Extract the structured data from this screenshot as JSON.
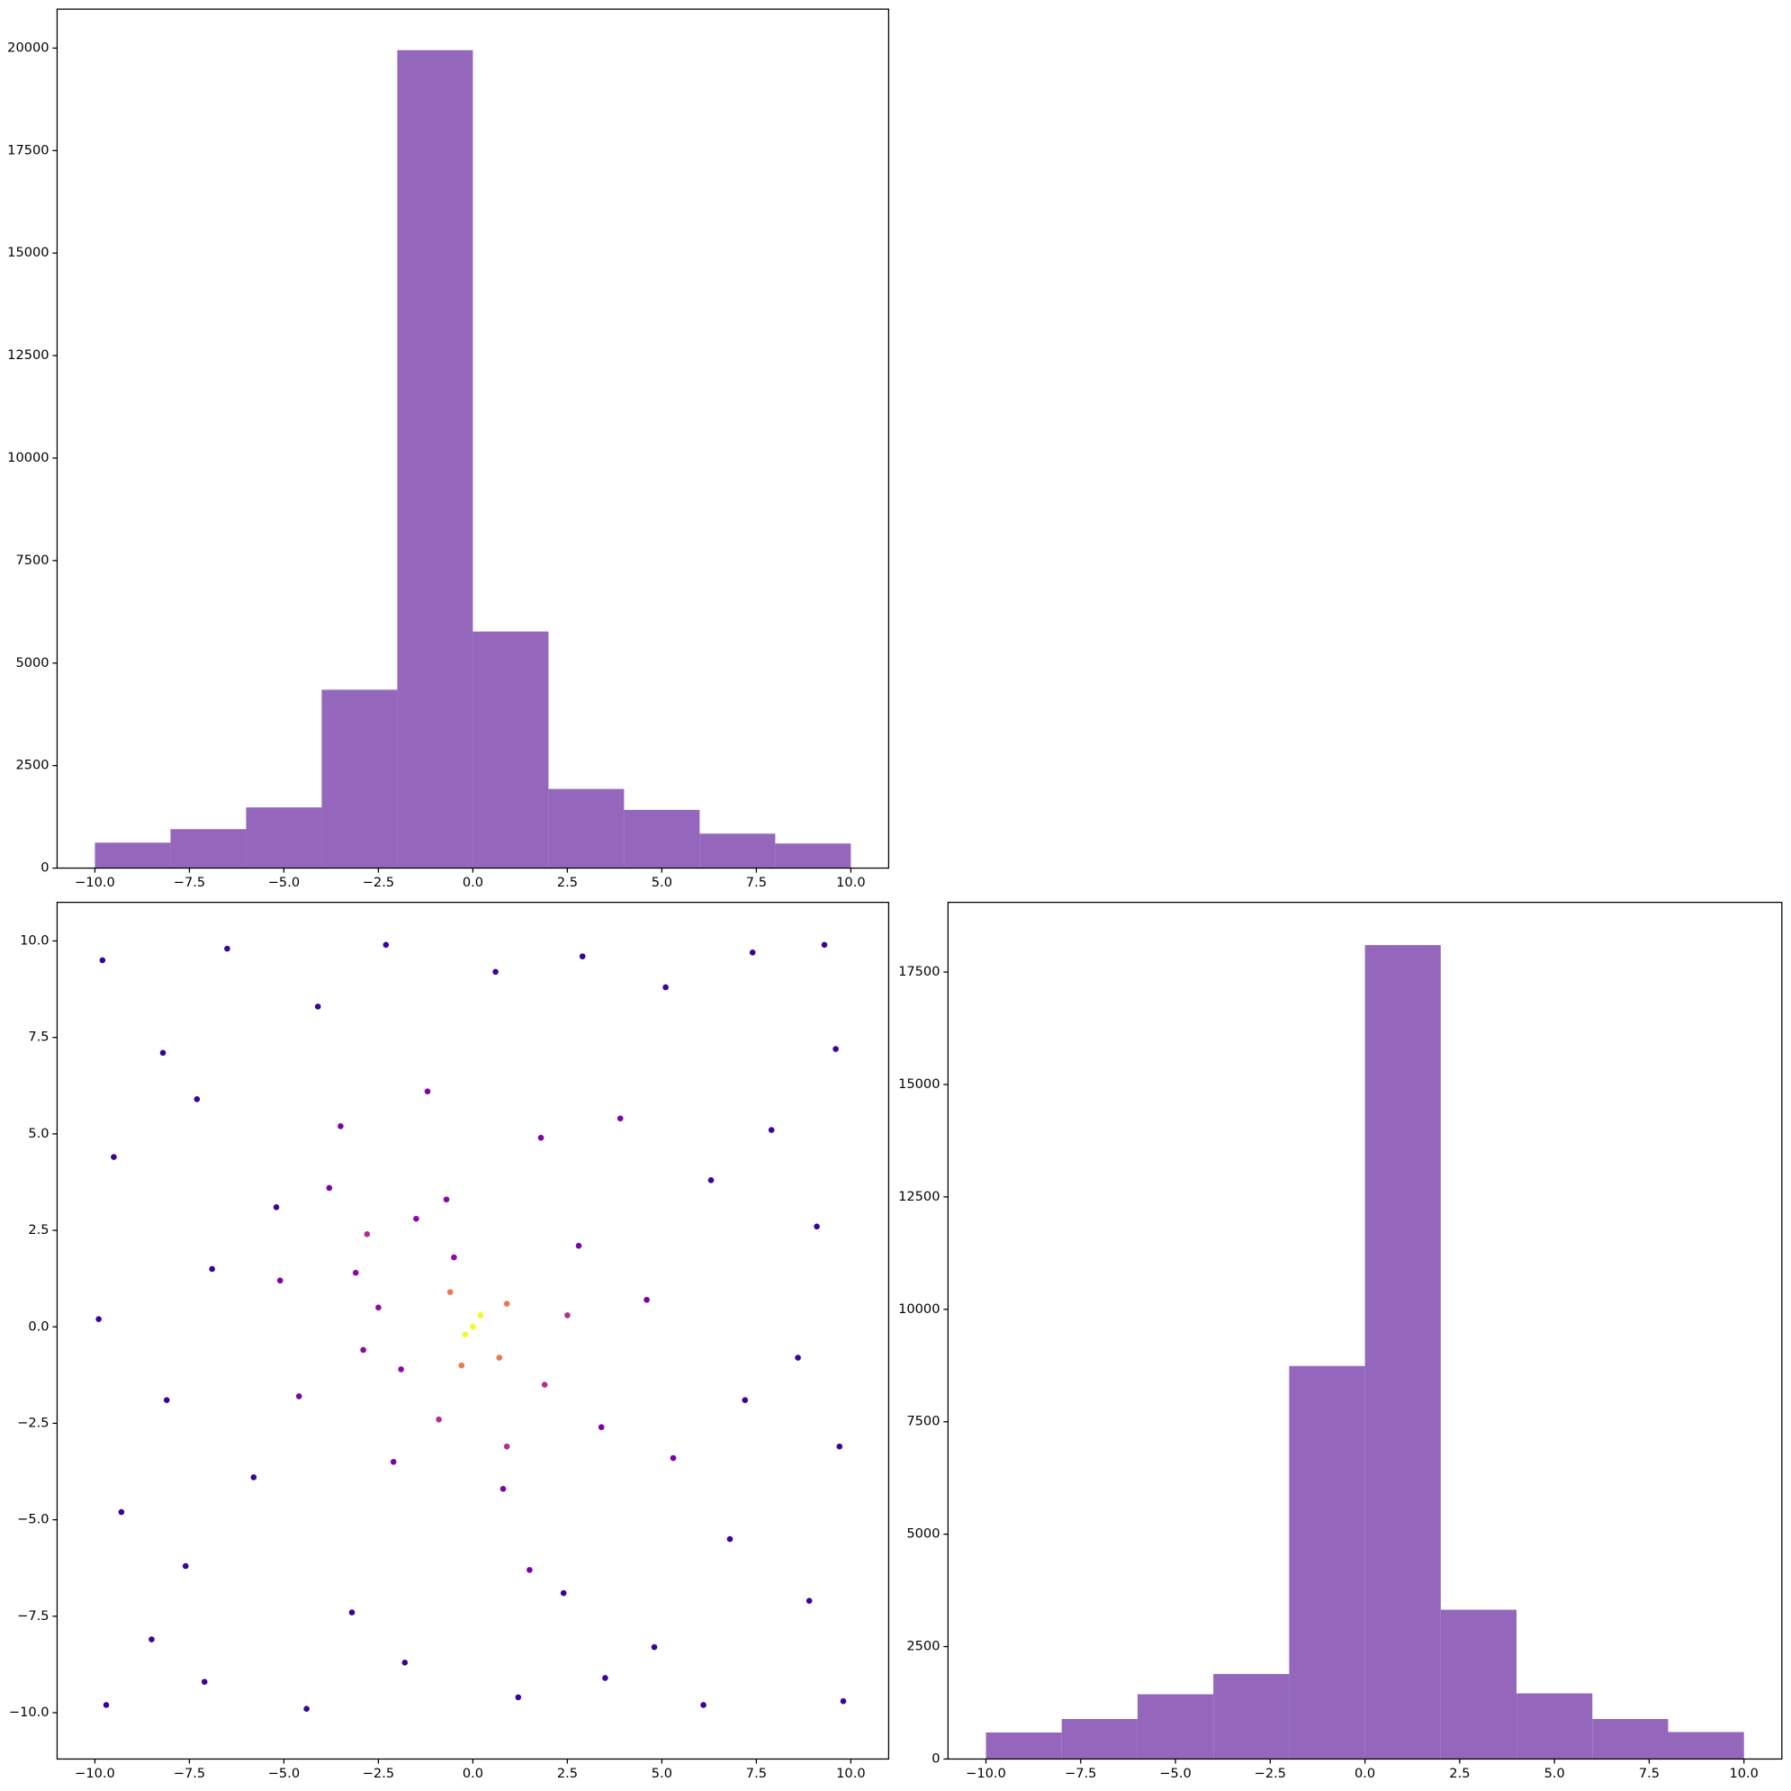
{
  "chart_data": [
    {
      "type": "histogram",
      "color": "#9467bd",
      "bins": [
        -10,
        -8,
        -6,
        -4,
        -2,
        0,
        2,
        4,
        6,
        8,
        10
      ],
      "values": [
        620,
        950,
        1480,
        4350,
        19950,
        5770,
        1930,
        1420,
        840,
        600
      ],
      "xlim": [
        -11,
        11
      ],
      "ylim": [
        0,
        20950
      ],
      "xticks": [
        {
          "value": -10,
          "label": "−10.0"
        },
        {
          "value": -7.5,
          "label": "−7.5"
        },
        {
          "value": -5,
          "label": "−5.0"
        },
        {
          "value": -2.5,
          "label": "−2.5"
        },
        {
          "value": 0,
          "label": "0.0"
        },
        2.5,
        {
          "value": 5,
          "label": "5.0"
        },
        7.5,
        {
          "value": 10,
          "label": "10.0"
        }
      ],
      "yticks": [
        0,
        2500,
        5000,
        7500,
        10000,
        12500,
        15000,
        17500,
        20000
      ]
    },
    {
      "type": "scatter",
      "x": [
        -9.8,
        -8.2,
        -6.5,
        -4.1,
        -2.3,
        0.6,
        2.9,
        5.1,
        7.4,
        9.6,
        -9.5,
        -7.3,
        -5.2,
        7.9,
        9.1,
        6.3,
        -9.9,
        -8.1,
        -6.9,
        8.6,
        9.7,
        7.2,
        -9.3,
        -7.6,
        -5.8,
        6.8,
        8.9,
        4.8,
        -9.7,
        -7.1,
        -4.4,
        -1.8,
        1.2,
        3.5,
        6.1,
        9.8,
        -3.2,
        2.4,
        -8.5,
        9.3,
        -3.5,
        -1.2,
        1.8,
        3.9,
        -4.6,
        2.8,
        3.4,
        -2.1,
        0.8,
        4.6,
        -5.1,
        1.5,
        5.3,
        -3.8,
        1.9,
        -0.9,
        2.5,
        0.9,
        -2.8,
        -2.5,
        -1.5,
        -0.7,
        -2.9,
        -1.9,
        -0.5,
        -3.1,
        0.7,
        -0.6,
        0.9,
        -0.3,
        0,
        0.2,
        -0.2
      ],
      "y": [
        9.5,
        7.1,
        9.8,
        8.3,
        9.9,
        9.2,
        9.6,
        8.8,
        9.7,
        7.2,
        4.4,
        5.9,
        3.1,
        5.1,
        2.6,
        3.8,
        0.2,
        -1.9,
        1.5,
        -0.8,
        -3.1,
        -1.9,
        -4.8,
        -6.2,
        -3.9,
        -5.5,
        -7.1,
        -8.3,
        -9.8,
        -9.2,
        -9.9,
        -8.7,
        -9.6,
        -9.1,
        -9.8,
        -9.7,
        -7.4,
        -6.9,
        -8.1,
        9.9,
        5.2,
        6.1,
        4.9,
        5.4,
        -1.8,
        2.1,
        -2.6,
        -3.5,
        -4.2,
        0.7,
        1.2,
        -6.3,
        -3.4,
        3.6,
        -1.5,
        -2.4,
        0.3,
        -3.1,
        2.4,
        0.5,
        2.8,
        3.3,
        -0.6,
        -1.1,
        1.8,
        1.4,
        -0.8,
        0.9,
        0.6,
        -1.0,
        0,
        0.3,
        -0.2
      ],
      "colors": [
        "#3a049a",
        "#3a049a",
        "#3a049a",
        "#3a049a",
        "#3a049a",
        "#3a049a",
        "#3a049a",
        "#3a049a",
        "#3a049a",
        "#3a049a",
        "#3a049a",
        "#3a049a",
        "#3a049a",
        "#3a049a",
        "#3a049a",
        "#3a049a",
        "#3a049a",
        "#3a049a",
        "#3a049a",
        "#3a049a",
        "#3a049a",
        "#3a049a",
        "#3a049a",
        "#3a049a",
        "#3a049a",
        "#3a049a",
        "#3a049a",
        "#3a049a",
        "#3a049a",
        "#3a049a",
        "#3a049a",
        "#3a049a",
        "#3a049a",
        "#3a049a",
        "#3a049a",
        "#3a049a",
        "#3a049a",
        "#3a049a",
        "#3a049a",
        "#3a049a",
        "#7b02a8",
        "#7b02a8",
        "#7b02a8",
        "#7b02a8",
        "#7b02a8",
        "#7b02a8",
        "#7b02a8",
        "#7b02a8",
        "#7b02a8",
        "#7b02a8",
        "#7b02a8",
        "#7b02a8",
        "#7b02a8",
        "#7b02a8",
        "#b42e8d",
        "#b42e8d",
        "#b42e8d",
        "#b42e8d",
        "#b42e8d",
        "#8d09a5",
        "#8d09a5",
        "#8d09a5",
        "#8d09a5",
        "#8d09a5",
        "#8d09a5",
        "#8d09a5",
        "#ed7953",
        "#ed7953",
        "#ed7953",
        "#ed7953",
        "#f0f921",
        "#f0f921",
        "#f0f921"
      ],
      "xlim": [
        -11,
        11
      ],
      "ylim": [
        -11.2,
        11
      ],
      "xticks": [
        {
          "value": -10,
          "label": "−10.0"
        },
        {
          "value": -7.5,
          "label": "−7.5"
        },
        {
          "value": -5,
          "label": "−5.0"
        },
        {
          "value": -2.5,
          "label": "−2.5"
        },
        {
          "value": 0,
          "label": "0.0"
        },
        2.5,
        {
          "value": 5,
          "label": "5.0"
        },
        7.5,
        {
          "value": 10,
          "label": "10.0"
        }
      ],
      "yticks": [
        {
          "value": -10,
          "label": "−10.0"
        },
        {
          "value": -7.5,
          "label": "−7.5"
        },
        {
          "value": -5,
          "label": "−5.0"
        },
        {
          "value": -2.5,
          "label": "−2.5"
        },
        {
          "value": 0,
          "label": "0.0"
        },
        2.5,
        {
          "value": 5,
          "label": "5.0"
        },
        7.5,
        {
          "value": 10,
          "label": "10.0"
        }
      ]
    },
    {
      "type": "histogram",
      "color": "#9467bd",
      "bins": [
        -10,
        -8,
        -6,
        -4,
        -2,
        0,
        2,
        4,
        6,
        8,
        10
      ],
      "values": [
        590,
        890,
        1440,
        1890,
        8740,
        18100,
        3320,
        1460,
        890,
        600
      ],
      "xlim": [
        -11,
        11
      ],
      "ylim": [
        0,
        19050
      ],
      "xticks": [
        {
          "value": -10,
          "label": "−10.0"
        },
        {
          "value": -7.5,
          "label": "−7.5"
        },
        {
          "value": -5,
          "label": "−5.0"
        },
        {
          "value": -2.5,
          "label": "−2.5"
        },
        {
          "value": 0,
          "label": "0.0"
        },
        2.5,
        {
          "value": 5,
          "label": "5.0"
        },
        7.5,
        {
          "value": 10,
          "label": "10.0"
        }
      ],
      "yticks": [
        0,
        2500,
        5000,
        7500,
        10000,
        12500,
        15000,
        17500
      ]
    }
  ]
}
